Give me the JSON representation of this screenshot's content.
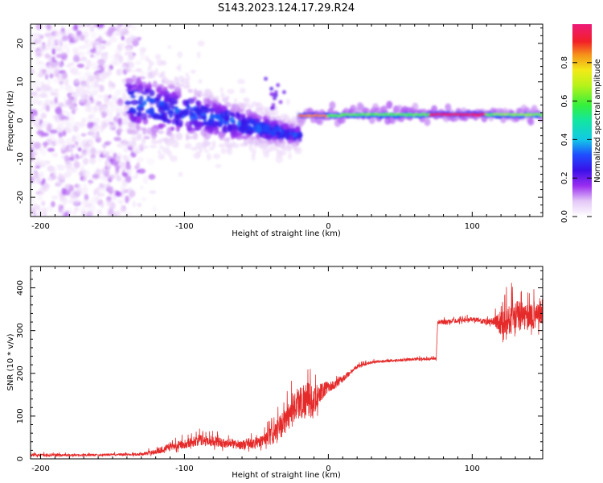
{
  "title": "S143.2023.124.17.29.R24",
  "chart_data": [
    {
      "type": "heatmap",
      "xlabel": "Height of straight line (km)",
      "ylabel": "Frequency (Hz)",
      "xlim": [
        -207,
        149
      ],
      "ylim": [
        -25,
        25
      ],
      "xticks": [
        -200,
        -100,
        0,
        100
      ],
      "yticks": [
        -20,
        -10,
        0,
        10,
        20
      ],
      "colorbar": {
        "label": "Normalized spectral amplitude",
        "range": [
          0.0,
          1.0
        ],
        "ticks": [
          0.0,
          0.2,
          0.4,
          0.6,
          0.8
        ],
        "tick_labels": [
          "0.0",
          "0.2",
          "0.4",
          "0.6",
          "0.8"
        ],
        "colormap": "white-purple-blue-cyan-green-yellow-orange-red-pink"
      },
      "regions": [
        {
          "x": [
            -207,
            -140
          ],
          "freq_range": [
            -25,
            25
          ],
          "amplitude": [
            0.02,
            0.15
          ],
          "pattern": "scattered noise"
        },
        {
          "x": [
            -140,
            -20
          ],
          "freq_center_from": 5,
          "freq_center_to": -4,
          "amplitude": [
            0.05,
            0.35
          ],
          "pattern": "descending cluster"
        },
        {
          "x": [
            -20,
            149
          ],
          "freq_center": 1.5,
          "amplitude": [
            0.5,
            1.0
          ],
          "pattern": "narrow band"
        }
      ]
    },
    {
      "type": "line",
      "xlabel": "Height of straight line (km)",
      "ylabel": "SNR (10 * v/v)",
      "xlim": [
        -207,
        149
      ],
      "ylim": [
        0,
        450
      ],
      "xticks": [
        -200,
        -100,
        0,
        100
      ],
      "yticks": [
        0,
        100,
        200,
        300,
        400
      ],
      "color": "#e52a2a",
      "series": [
        {
          "x": [
            -207,
            -190,
            -170,
            -150,
            -130,
            -120,
            -110,
            -100,
            -90,
            -80,
            -70,
            -60,
            -50,
            -40,
            -35,
            -30,
            -25,
            -20,
            -15,
            -10,
            -5,
            0,
            5,
            10,
            15,
            20,
            30,
            40,
            50,
            60,
            70,
            75,
            76,
            80,
            90,
            100,
            110,
            115,
            120,
            125,
            130,
            135,
            140,
            145,
            149
          ],
          "y": [
            8,
            8,
            8,
            9,
            10,
            15,
            25,
            32,
            40,
            38,
            32,
            30,
            32,
            45,
            60,
            80,
            110,
            120,
            125,
            120,
            150,
            165,
            170,
            185,
            200,
            215,
            225,
            228,
            230,
            232,
            233,
            234,
            320,
            318,
            322,
            325,
            318,
            320,
            310,
            315,
            320,
            325,
            320,
            330,
            340
          ],
          "noise": [
            6,
            6,
            5,
            5,
            6,
            12,
            18,
            20,
            25,
            25,
            20,
            20,
            25,
            40,
            50,
            60,
            70,
            80,
            90,
            70,
            40,
            25,
            20,
            15,
            10,
            8,
            6,
            6,
            6,
            6,
            6,
            6,
            12,
            10,
            10,
            10,
            12,
            20,
            60,
            70,
            80,
            70,
            60,
            70,
            60
          ]
        }
      ]
    }
  ]
}
